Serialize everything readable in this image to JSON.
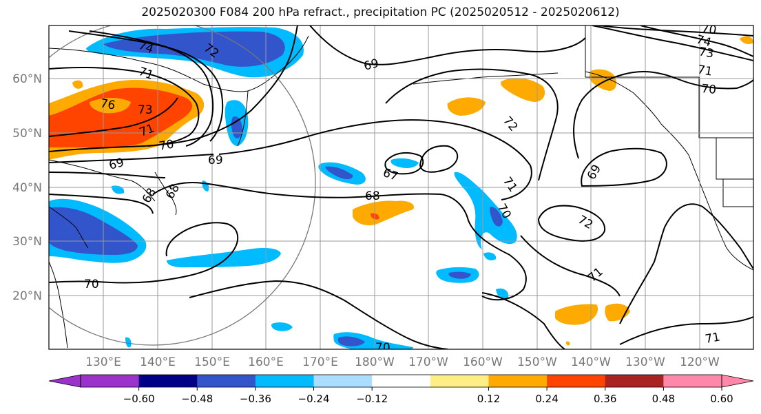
{
  "title": "2025020300 F084 200 hPa refract., precipitation PC (2025020512 - 2025020612)",
  "lat_labels": [
    "60°N",
    "50°N",
    "40°N",
    "30°N",
    "20°N"
  ],
  "lon_labels": [
    "130°E",
    "140°E",
    "150°E",
    "160°E",
    "170°E",
    "180°W",
    "170°W",
    "160°W",
    "150°W",
    "140°W",
    "130°W",
    "120°W"
  ],
  "contour_labels": [
    "74",
    "72",
    "71",
    "69",
    "76",
    "73",
    "71",
    "70",
    "69",
    "68",
    "68",
    "69",
    "67",
    "68",
    "72",
    "71",
    "70",
    "72",
    "69",
    "71",
    "70",
    "71",
    "70",
    "74",
    "73",
    "71",
    "70",
    "70"
  ],
  "colorbar": {
    "colors": [
      "#9933cc",
      "#000088",
      "#3355cc",
      "#00bbff",
      "#aaddff",
      "#ffffff",
      "#ffee88",
      "#ffaa00",
      "#ff4400",
      "#aa2222",
      "#ff88aa"
    ],
    "under_color": "#9933cc",
    "over_color": "#ff88aa",
    "tick_labels": [
      "−0.60",
      "−0.48",
      "−0.36",
      "−0.24",
      "−0.12",
      "0.12",
      "0.24",
      "0.36",
      "0.48",
      "0.60"
    ]
  }
}
